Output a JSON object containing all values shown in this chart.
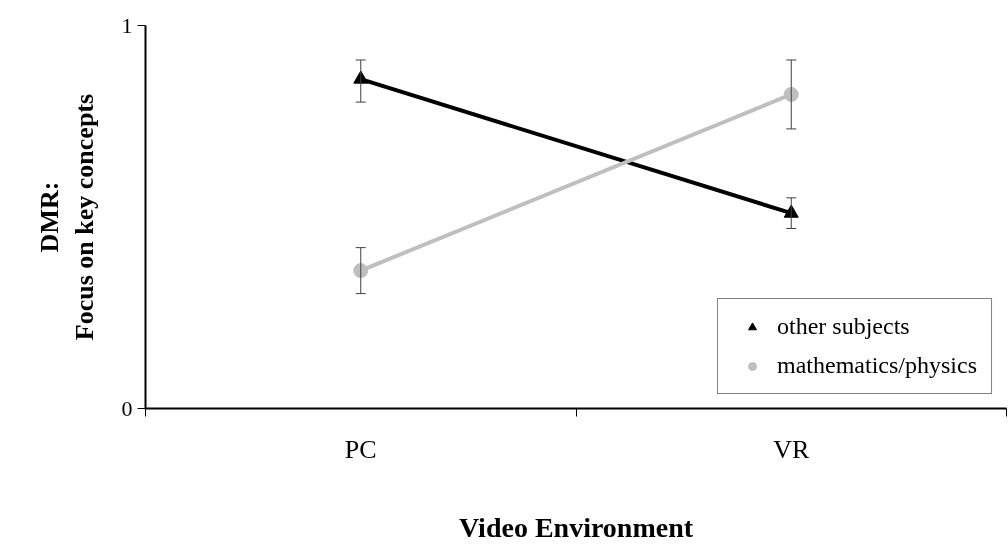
{
  "chart_data": {
    "type": "line",
    "xlabel": "Video Environment",
    "ylabel": "DMR:\nFocus on key concepts",
    "categories": [
      "PC",
      "VR"
    ],
    "ylim": [
      0,
      1
    ],
    "yticks": [
      0,
      1
    ],
    "grid": false,
    "legend": "bottom right",
    "series": [
      {
        "name": "other subjects",
        "color": "#000000",
        "marker": "triangle",
        "values": [
          0.86,
          0.51
        ],
        "errors": [
          [
            0.8,
            0.91
          ],
          [
            0.47,
            0.55
          ]
        ]
      },
      {
        "name": "mathematics/physics",
        "color": "#bfbfbf",
        "marker": "circle",
        "values": [
          0.36,
          0.82
        ],
        "errors": [
          [
            0.3,
            0.42
          ],
          [
            0.73,
            0.91
          ]
        ]
      }
    ]
  }
}
